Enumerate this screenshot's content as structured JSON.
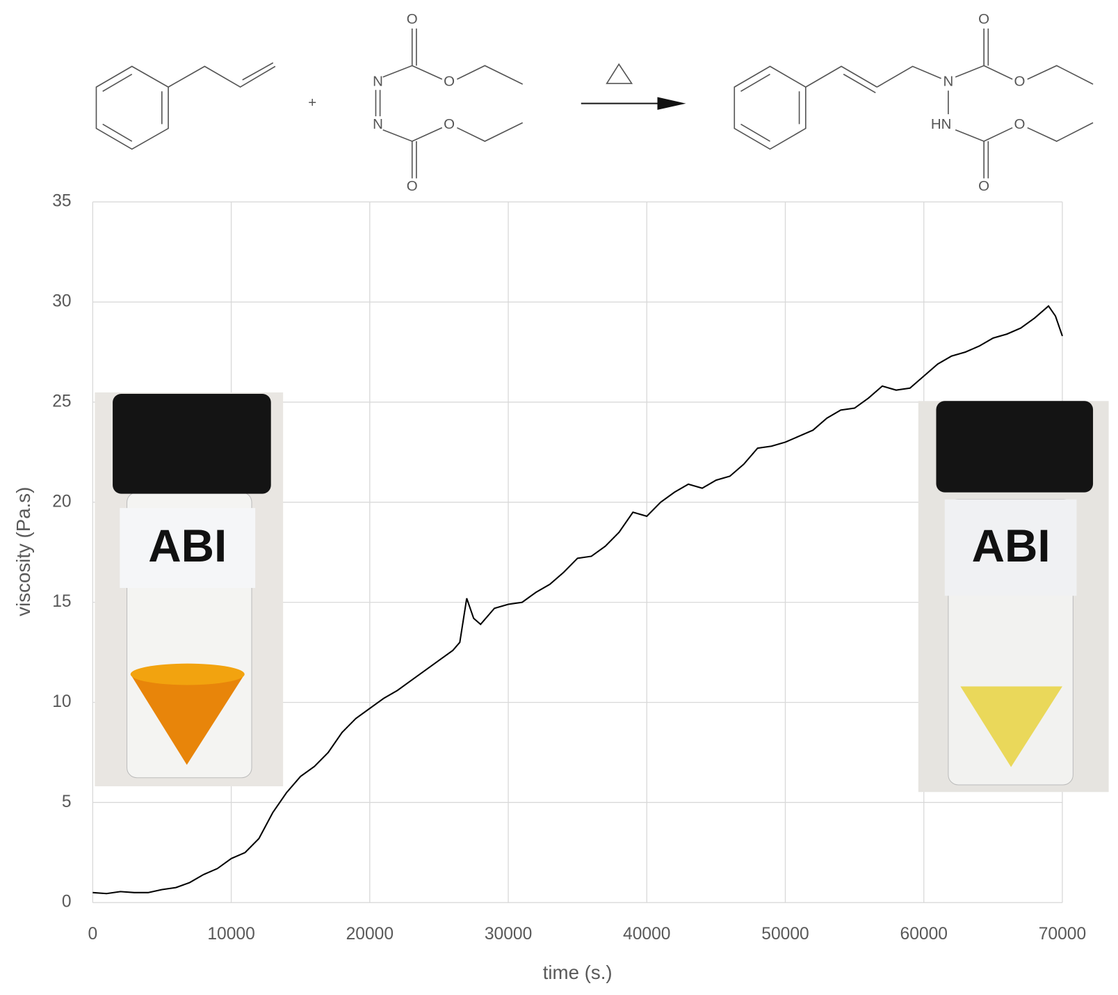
{
  "chart_data": {
    "type": "line",
    "xlabel": "time (s.)",
    "ylabel": "viscosity (Pa.s)",
    "x": [
      0,
      1000,
      2000,
      3000,
      4000,
      5000,
      6000,
      7000,
      8000,
      9000,
      10000,
      11000,
      12000,
      13000,
      14000,
      15000,
      16000,
      17000,
      18000,
      19000,
      20000,
      21000,
      22000,
      23000,
      24000,
      25000,
      26000,
      26500,
      27000,
      27500,
      28000,
      29000,
      30000,
      31000,
      32000,
      33000,
      34000,
      35000,
      36000,
      37000,
      38000,
      39000,
      40000,
      41000,
      42000,
      43000,
      44000,
      45000,
      46000,
      47000,
      48000,
      49000,
      50000,
      51000,
      52000,
      53000,
      54000,
      55000,
      56000,
      57000,
      58000,
      59000,
      60000,
      61000,
      62000,
      63000,
      64000,
      65000,
      66000,
      67000,
      68000,
      69000,
      69500,
      70000
    ],
    "values": [
      0.5,
      0.45,
      0.55,
      0.5,
      0.5,
      0.65,
      0.75,
      1.0,
      1.4,
      1.7,
      2.2,
      2.5,
      3.2,
      4.5,
      5.5,
      6.3,
      6.8,
      7.5,
      8.5,
      9.2,
      9.7,
      10.2,
      10.6,
      11.1,
      11.6,
      12.1,
      12.6,
      13.0,
      15.2,
      14.2,
      13.9,
      14.7,
      14.9,
      15.0,
      15.5,
      15.9,
      16.5,
      17.2,
      17.3,
      17.8,
      18.5,
      19.5,
      19.3,
      20.0,
      20.5,
      20.9,
      20.7,
      21.1,
      21.3,
      21.9,
      22.7,
      22.8,
      23.0,
      23.3,
      23.6,
      24.2,
      24.6,
      24.7,
      25.2,
      25.8,
      25.6,
      25.7,
      26.3,
      26.9,
      27.3,
      27.5,
      27.8,
      28.2,
      28.4,
      28.7,
      29.2,
      29.8,
      29.3,
      28.3
    ],
    "color": "#000000",
    "xlim": [
      0,
      70000
    ],
    "xticks": [
      0,
      10000,
      20000,
      30000,
      40000,
      50000,
      60000,
      70000
    ],
    "ylim": [
      0,
      35
    ],
    "yticks": [
      0,
      5,
      10,
      15,
      20,
      25,
      30,
      35
    ],
    "grid": true
  },
  "scheme": {
    "plus": "+",
    "reactant_atoms": [
      "N",
      "N",
      "O",
      "O",
      "O",
      "O"
    ],
    "product_atoms": [
      "N",
      "HN",
      "O",
      "O",
      "O",
      "O"
    ]
  },
  "photos": [
    {
      "label": "ABI"
    },
    {
      "label": "ABI"
    }
  ]
}
